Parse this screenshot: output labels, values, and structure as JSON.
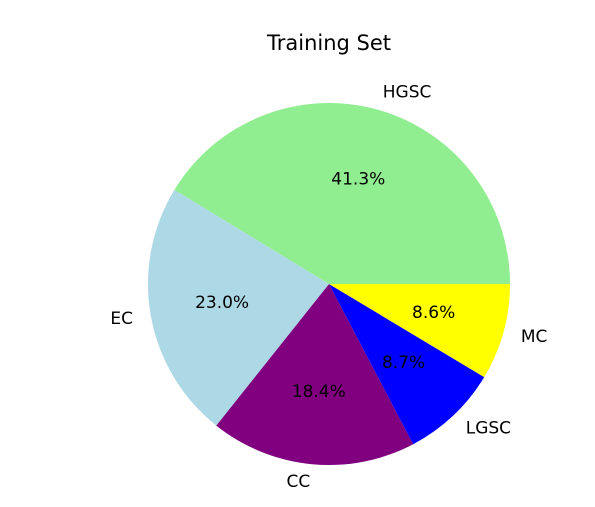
{
  "chart_data": {
    "type": "pie",
    "title": "Training Set",
    "categories": [
      "HGSC",
      "EC",
      "CC",
      "LGSC",
      "MC"
    ],
    "values": [
      41.3,
      23.0,
      18.4,
      8.7,
      8.6
    ],
    "value_labels": [
      "41.3%",
      "23.0%",
      "18.4%",
      "8.7%",
      "8.6%"
    ],
    "colors": [
      "#90ee90",
      "#add8e6",
      "#800080",
      "#0000ff",
      "#ffff00"
    ],
    "start_angle_deg": 0,
    "direction": "counterclockwise",
    "legend": "none"
  }
}
